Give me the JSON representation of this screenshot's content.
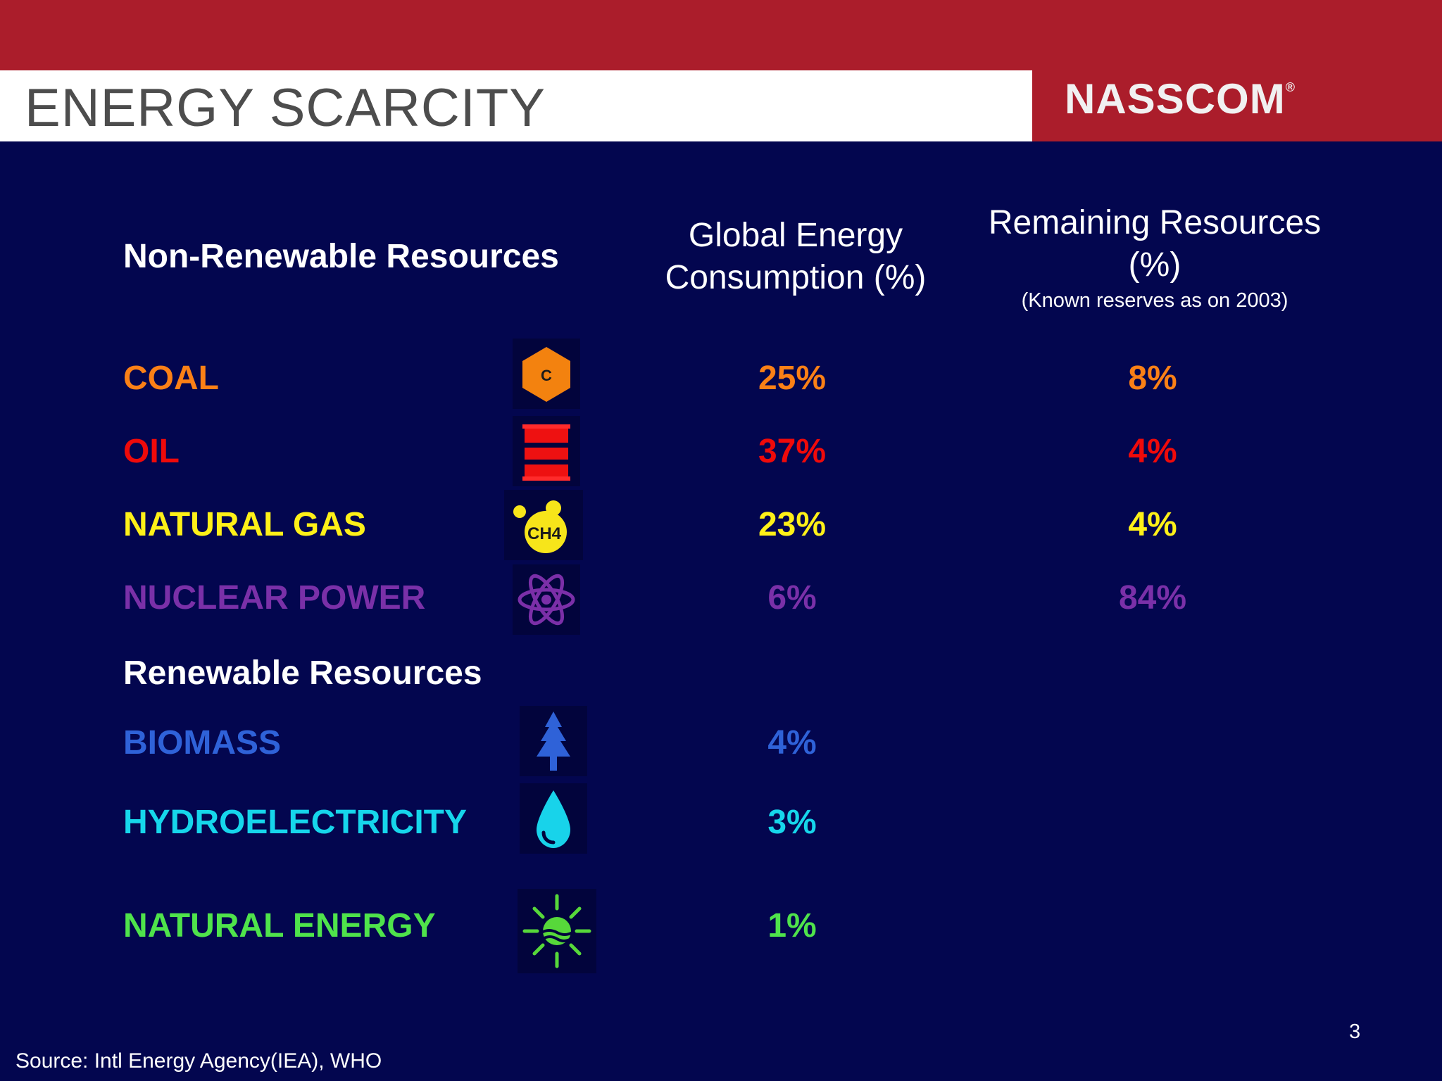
{
  "header": {
    "title": "ENERGY SCARCITY",
    "logo_text": "NASSCOM",
    "logo_mark": "®"
  },
  "table": {
    "section_nonrenewable": "Non-Renewable Resources",
    "col_global": "Global Energy Consumption (%)",
    "col_remaining": "Remaining Resources (%)",
    "col_remaining_note": "(Known reserves as on 2003)",
    "section_renewable": "Renewable Resources",
    "rows": [
      {
        "name": "COAL",
        "global": "25%",
        "remaining": "8%",
        "color": "#fb8016",
        "icon": "coal-hexagon-icon",
        "icon_text": "C"
      },
      {
        "name": "OIL",
        "global": "37%",
        "remaining": "4%",
        "color": "#ef0a0a",
        "icon": "oil-barrel-icon"
      },
      {
        "name": "NATURAL GAS",
        "global": "23%",
        "remaining": "4%",
        "color": "#fef018",
        "icon": "methane-bubble-icon",
        "icon_text": "CH4"
      },
      {
        "name": "NUCLEAR POWER",
        "global": "6%",
        "remaining": "84%",
        "color": "#7a30a8",
        "icon": "atom-icon"
      },
      {
        "name": "BIOMASS",
        "global": "4%",
        "color": "#2f62d8",
        "icon": "tree-icon"
      },
      {
        "name": "HYDROELECTRICITY",
        "global": "3%",
        "color": "#16d6eb",
        "icon": "water-drop-icon"
      },
      {
        "name": "NATURAL ENERGY",
        "global": "1%",
        "color": "#4fe34b",
        "icon": "sun-icon"
      }
    ]
  },
  "footer": {
    "page_number": "3",
    "source": "Source: Intl Energy Agency(IEA), WHO"
  }
}
